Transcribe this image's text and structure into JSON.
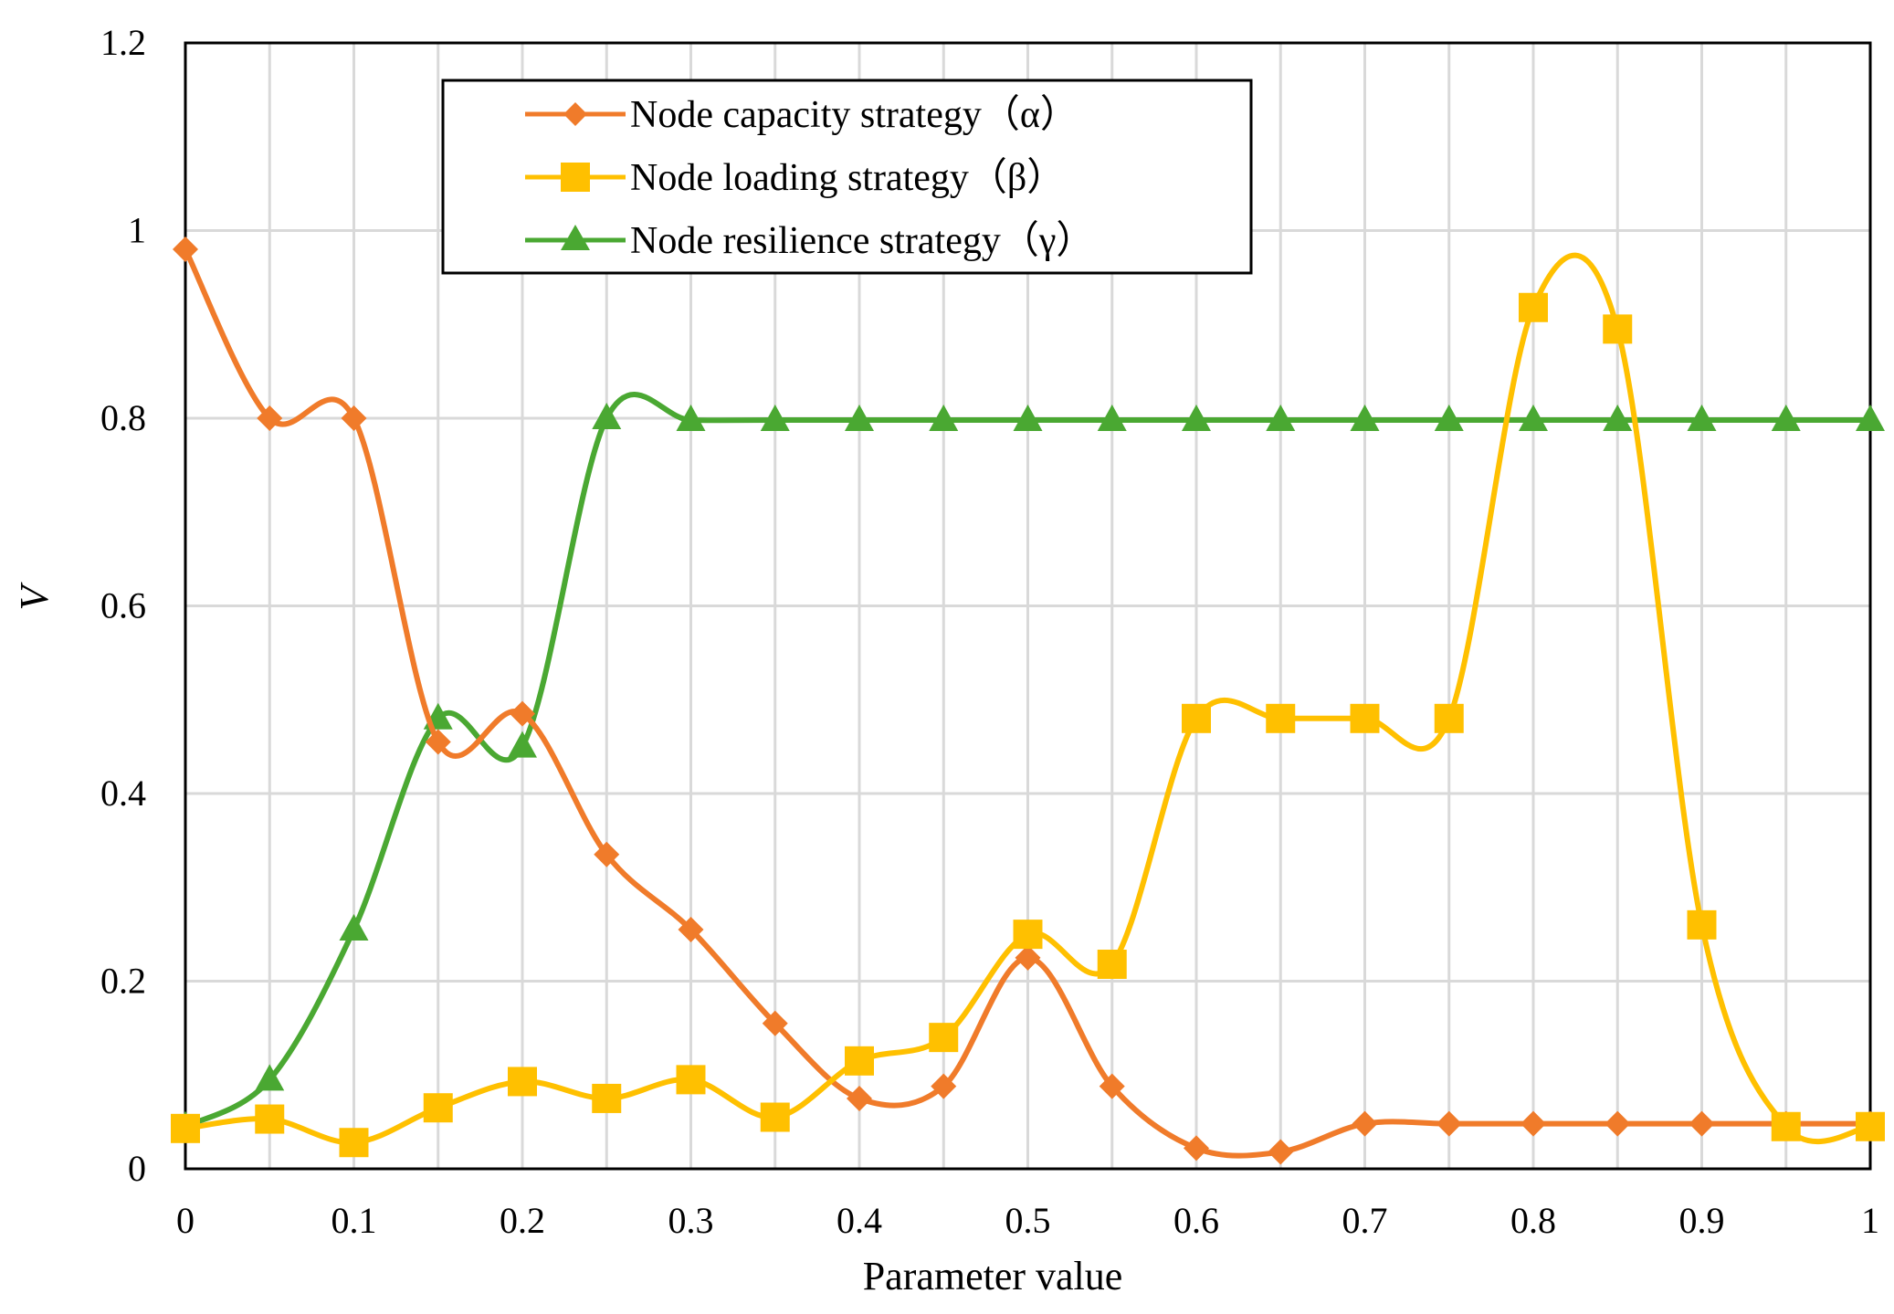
{
  "chart_data": {
    "type": "line",
    "title": "",
    "xlabel": "Parameter value",
    "ylabel": "V",
    "xlim": [
      0,
      1
    ],
    "ylim": [
      0,
      1.2
    ],
    "grid": true,
    "legend_position": "top-center",
    "x_ticks": [
      "0",
      "0.1",
      "0.2",
      "0.3",
      "0.4",
      "0.5",
      "0.6",
      "0.7",
      "0.8",
      "0.9",
      "1"
    ],
    "y_ticks": [
      "0",
      "0.2",
      "0.4",
      "0.6",
      "0.8",
      "1",
      "1.2"
    ],
    "x": [
      0,
      0.05,
      0.1,
      0.15,
      0.2,
      0.25,
      0.3,
      0.35,
      0.4,
      0.45,
      0.5,
      0.55,
      0.6,
      0.65,
      0.7,
      0.75,
      0.8,
      0.85,
      0.9,
      0.95,
      1
    ],
    "series": [
      {
        "name": "Node capacity strategy（α）",
        "color": "#F07B2A",
        "marker": "diamond",
        "values": [
          0.98,
          0.8,
          0.8,
          0.455,
          0.485,
          0.335,
          0.255,
          0.155,
          0.075,
          0.088,
          0.225,
          0.088,
          0.022,
          0.018,
          0.048,
          0.048,
          0.048,
          0.048,
          0.048,
          0.048,
          0.048
        ]
      },
      {
        "name": "Node loading strategy（β）",
        "color": "#FFC000",
        "marker": "square",
        "values": [
          0.043,
          0.053,
          0.028,
          0.065,
          0.093,
          0.075,
          0.095,
          0.055,
          0.115,
          0.14,
          0.25,
          0.218,
          0.48,
          0.48,
          0.48,
          0.48,
          0.918,
          0.895,
          0.26,
          0.045,
          0.045
        ]
      },
      {
        "name": "Node resilience strategy（γ）",
        "color": "#4AA832",
        "marker": "triangle",
        "values": [
          0.045,
          0.095,
          0.255,
          0.48,
          0.45,
          0.8,
          0.798,
          0.798,
          0.798,
          0.798,
          0.798,
          0.798,
          0.798,
          0.798,
          0.798,
          0.798,
          0.798,
          0.798,
          0.798,
          0.798,
          0.798
        ]
      }
    ]
  }
}
